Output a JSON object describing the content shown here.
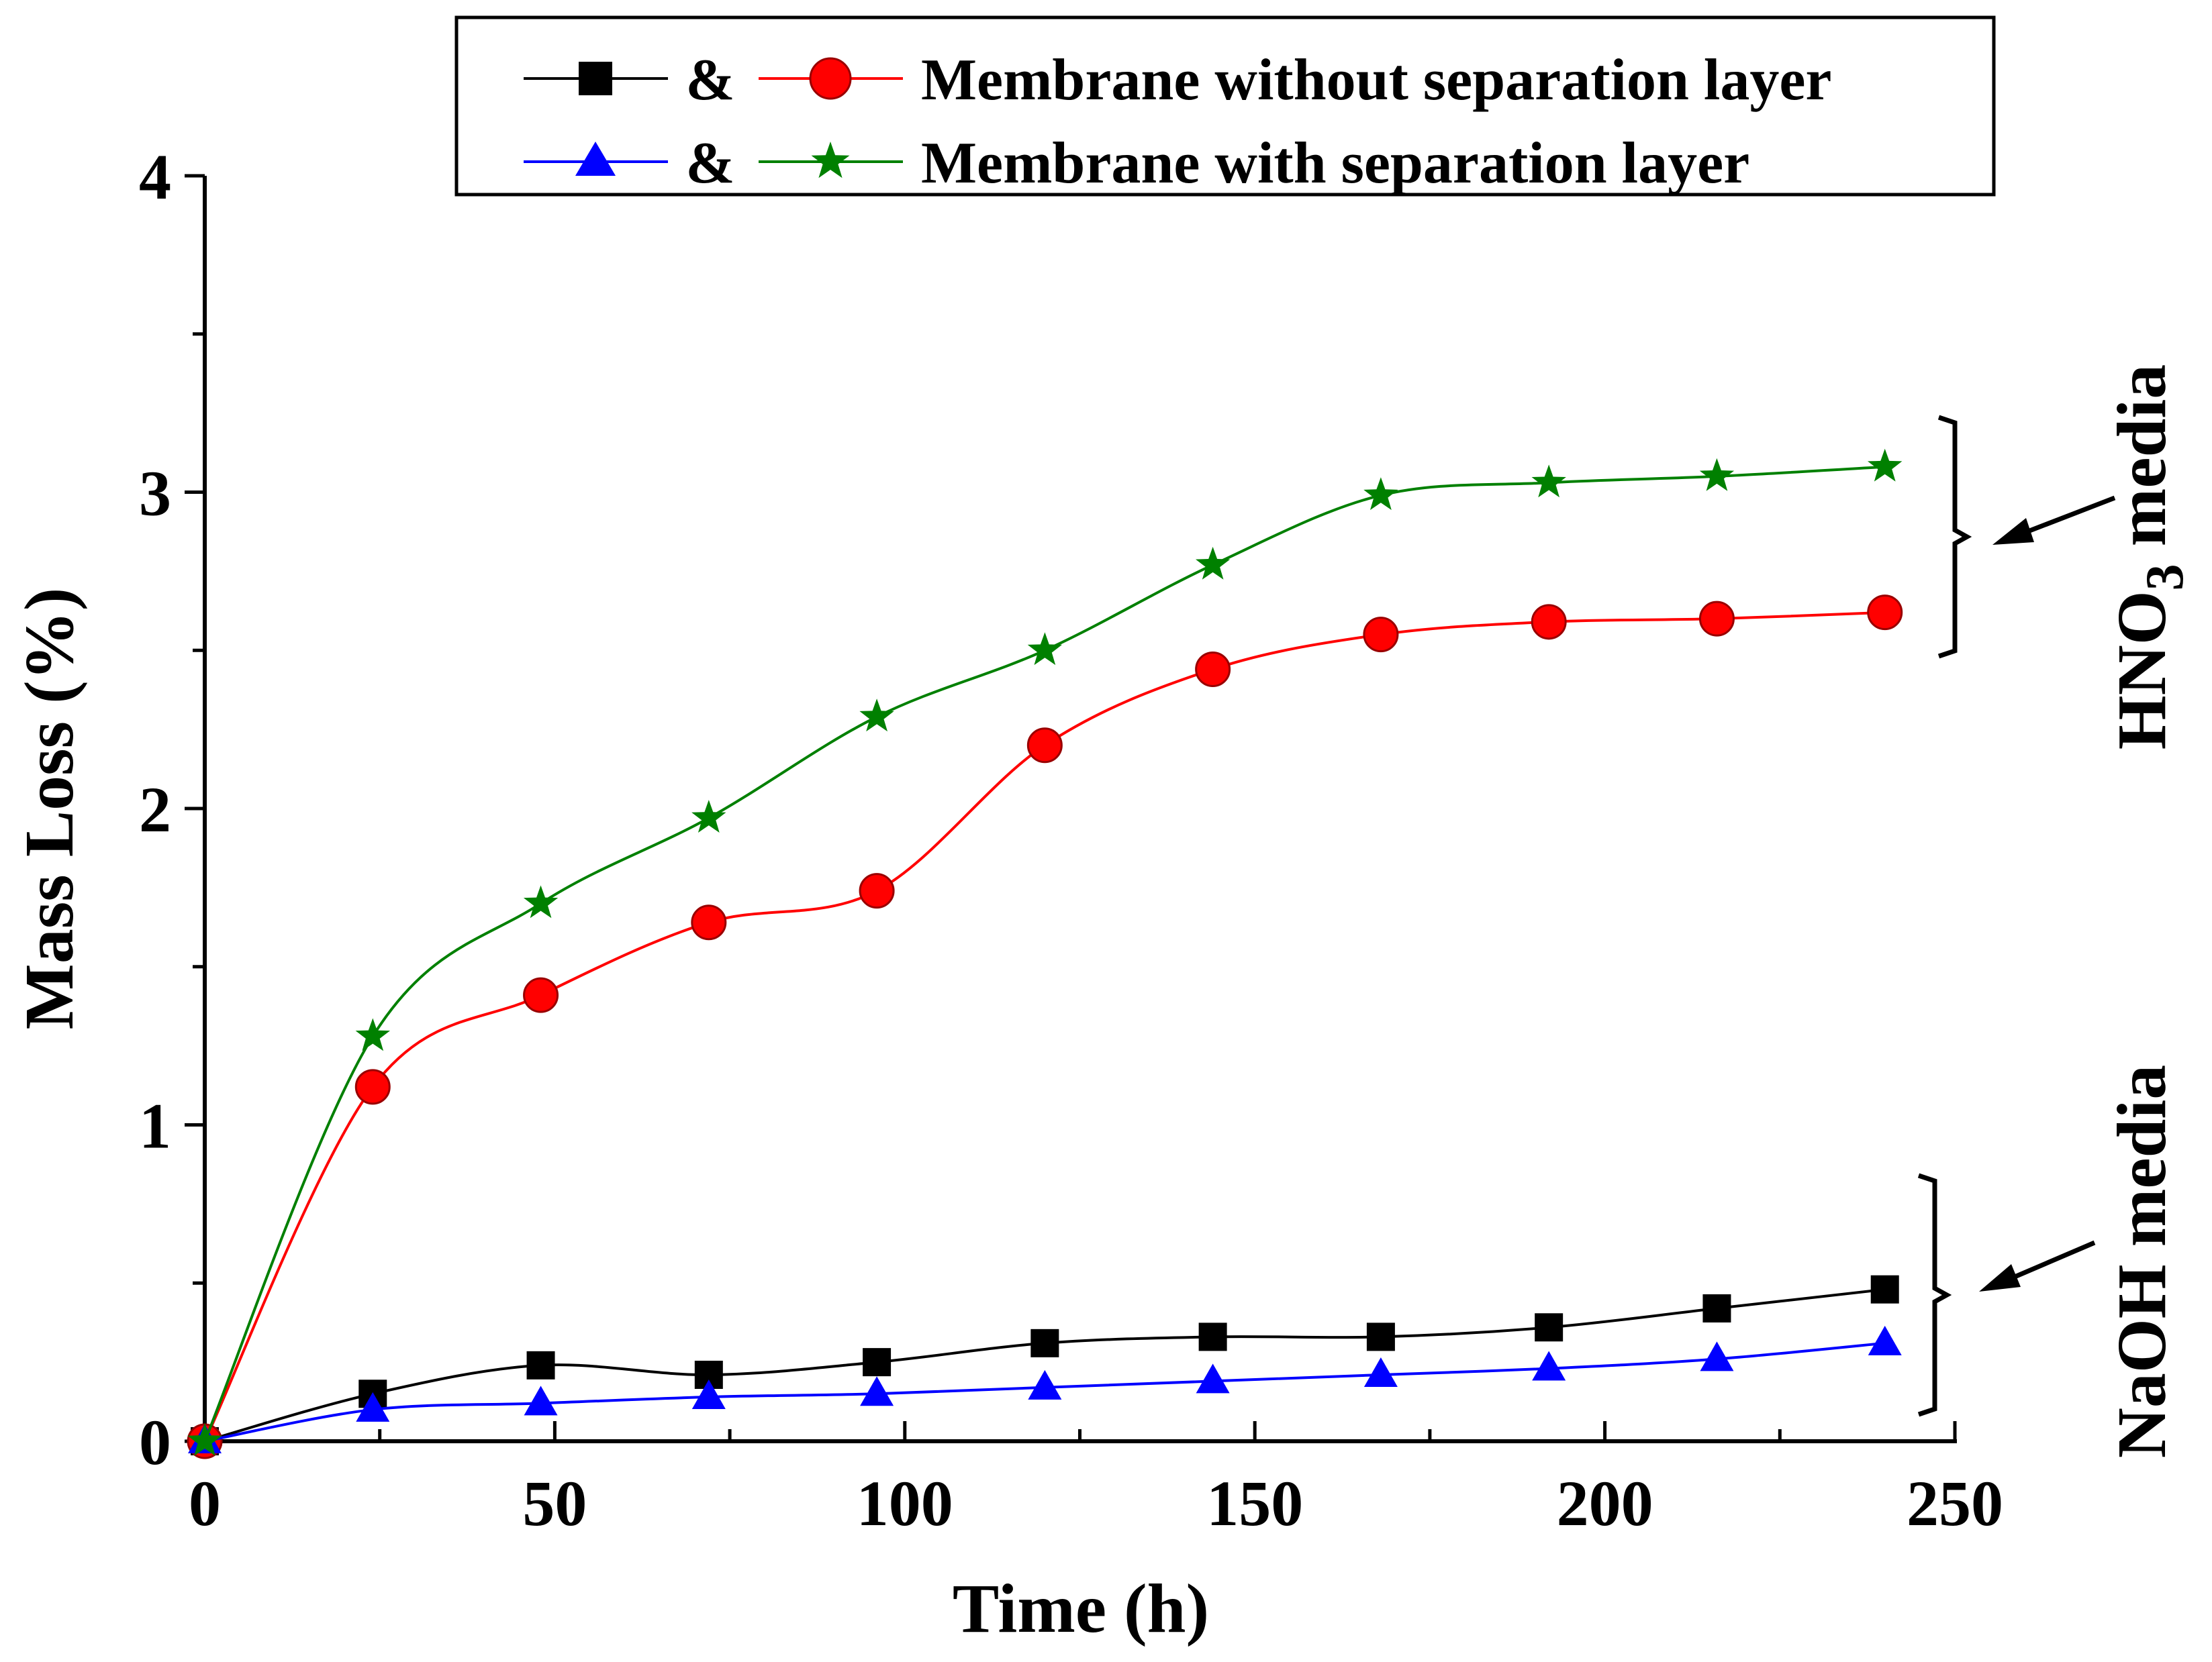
{
  "chart_data": {
    "type": "line",
    "title": "",
    "xlabel": "Time (h)",
    "ylabel": "Mass Loss (%)",
    "xlim": [
      0,
      250
    ],
    "ylim": [
      0,
      4
    ],
    "x_ticks": [
      "0",
      "50",
      "100",
      "150",
      "200",
      "250"
    ],
    "y_ticks": [
      "0",
      "1",
      "2",
      "3",
      "4"
    ],
    "grid": false,
    "x": [
      0,
      24,
      48,
      72,
      96,
      120,
      144,
      168,
      192,
      216,
      240
    ],
    "series": [
      {
        "name": "NaOH - without separation layer",
        "marker": "square",
        "color": "#000000",
        "values": [
          0,
          0.15,
          0.24,
          0.21,
          0.25,
          0.31,
          0.33,
          0.33,
          0.36,
          0.42,
          0.48
        ]
      },
      {
        "name": "HNO3 - without separation layer",
        "marker": "circle",
        "color": "#ff0000",
        "values": [
          0,
          1.12,
          1.41,
          1.64,
          1.74,
          2.2,
          2.44,
          2.55,
          2.59,
          2.6,
          2.62
        ]
      },
      {
        "name": "NaOH - with separation layer",
        "marker": "triangle",
        "color": "#0000ff",
        "values": [
          0,
          0.1,
          0.12,
          0.14,
          0.15,
          0.17,
          0.19,
          0.21,
          0.23,
          0.26,
          0.31
        ]
      },
      {
        "name": "HNO3 - with separation layer",
        "marker": "star",
        "color": "#008000",
        "values": [
          0,
          1.28,
          1.7,
          1.97,
          2.29,
          2.5,
          2.77,
          2.99,
          3.03,
          3.05,
          3.08
        ]
      }
    ],
    "legend": {
      "placement": "top-right",
      "connector": "&",
      "row1_label": "Membrane without separation layer",
      "row2_label": "Membrane with separation layer"
    },
    "annotations": {
      "hno3_prefix": "HNO",
      "hno3_sub": "3",
      "hno3_suffix": " media",
      "naoh": "NaOH media"
    }
  }
}
